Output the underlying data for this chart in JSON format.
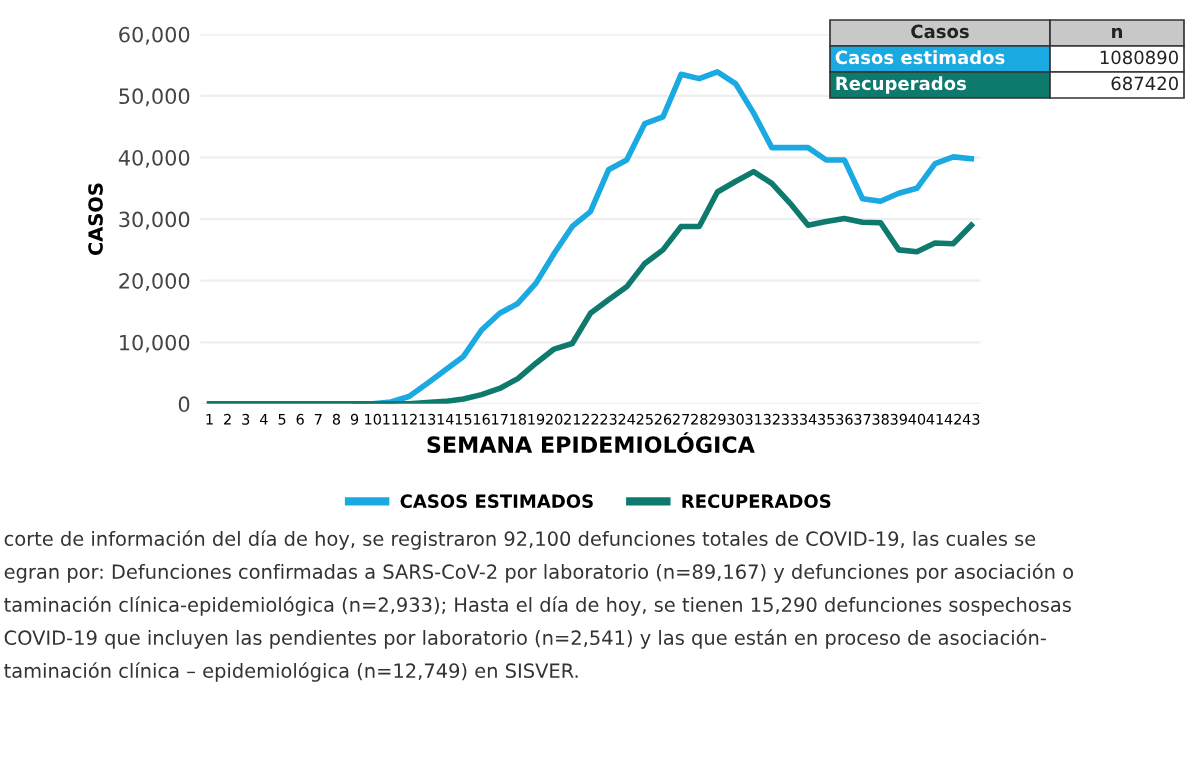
{
  "chart_data": {
    "type": "line",
    "xlabel": "SEMANA EPIDEMIOLÓGICA",
    "ylabel": "CASOS",
    "categories": [
      "1",
      "2",
      "3",
      "4",
      "5",
      "6",
      "7",
      "8",
      "9",
      "10",
      "11",
      "12",
      "13",
      "14",
      "15",
      "16",
      "17",
      "18",
      "19",
      "20",
      "21",
      "22",
      "23",
      "24",
      "25",
      "26",
      "27",
      "28",
      "29",
      "30",
      "31",
      "32",
      "33",
      "34",
      "35",
      "36",
      "37",
      "38",
      "39",
      "40",
      "41",
      "42",
      "43"
    ],
    "series": [
      {
        "name": "CASOS ESTIMADOS",
        "color": "#1ba9e1",
        "values": [
          null,
          null,
          null,
          null,
          null,
          null,
          null,
          null,
          0,
          0,
          300,
          1200,
          3300,
          5500,
          7700,
          12000,
          14700,
          16300,
          19600,
          24400,
          28800,
          31200,
          38000,
          39600,
          45500,
          46600,
          53500,
          52800,
          53900,
          52000,
          47200,
          41600,
          41600,
          41600,
          39600,
          39600,
          33300,
          32900,
          34200,
          35000,
          39000,
          40100,
          39800
        ]
      },
      {
        "name": "RECUPERADOS",
        "color": "#0e7a6e",
        "values": [
          0,
          0,
          0,
          0,
          0,
          0,
          0,
          0,
          0,
          0,
          0,
          0,
          200,
          400,
          800,
          1500,
          2500,
          4100,
          6600,
          8900,
          9800,
          14700,
          16900,
          19000,
          22800,
          25000,
          28800,
          28800,
          34400,
          36100,
          37700,
          35800,
          32600,
          29000,
          29600,
          30100,
          29500,
          29400,
          25000,
          24700,
          26100,
          26000,
          29000
        ]
      }
    ],
    "ylim": [
      0,
      60000
    ],
    "yticks": [
      {
        "value": 0,
        "label": "0"
      },
      {
        "value": 10000,
        "label": "10,000"
      },
      {
        "value": 20000,
        "label": "20,000"
      },
      {
        "value": 30000,
        "label": "30,000"
      },
      {
        "value": 40000,
        "label": "40,000"
      },
      {
        "value": 50000,
        "label": "50,000"
      },
      {
        "value": 60000,
        "label": "60,000"
      }
    ],
    "grid": "y",
    "legend": "bottom",
    "marker": "none",
    "line_style": "solid",
    "annotations": [
      "Casos",
      "n",
      "Casos estimados",
      "1080890",
      "Recuperados",
      "687420",
      "corte de información del día de hoy, se registraron 92,100 defunciones totales de COVID-19, las cuales se",
      "egran por: Defunciones confirmadas a SARS-CoV-2 por laboratorio (n=89,167) y defunciones por asociación o",
      "taminación clínica-epidemiológica (n=2,933); Hasta el día de hoy, se tienen 15,290 defunciones sospechosas",
      "COVID-19 que incluyen las pendientes por laboratorio (n=2,541) y las que están en proceso de asociación-",
      "taminación clínica – epidemiológica (n=12,749) en SISVER."
    ]
  }
}
